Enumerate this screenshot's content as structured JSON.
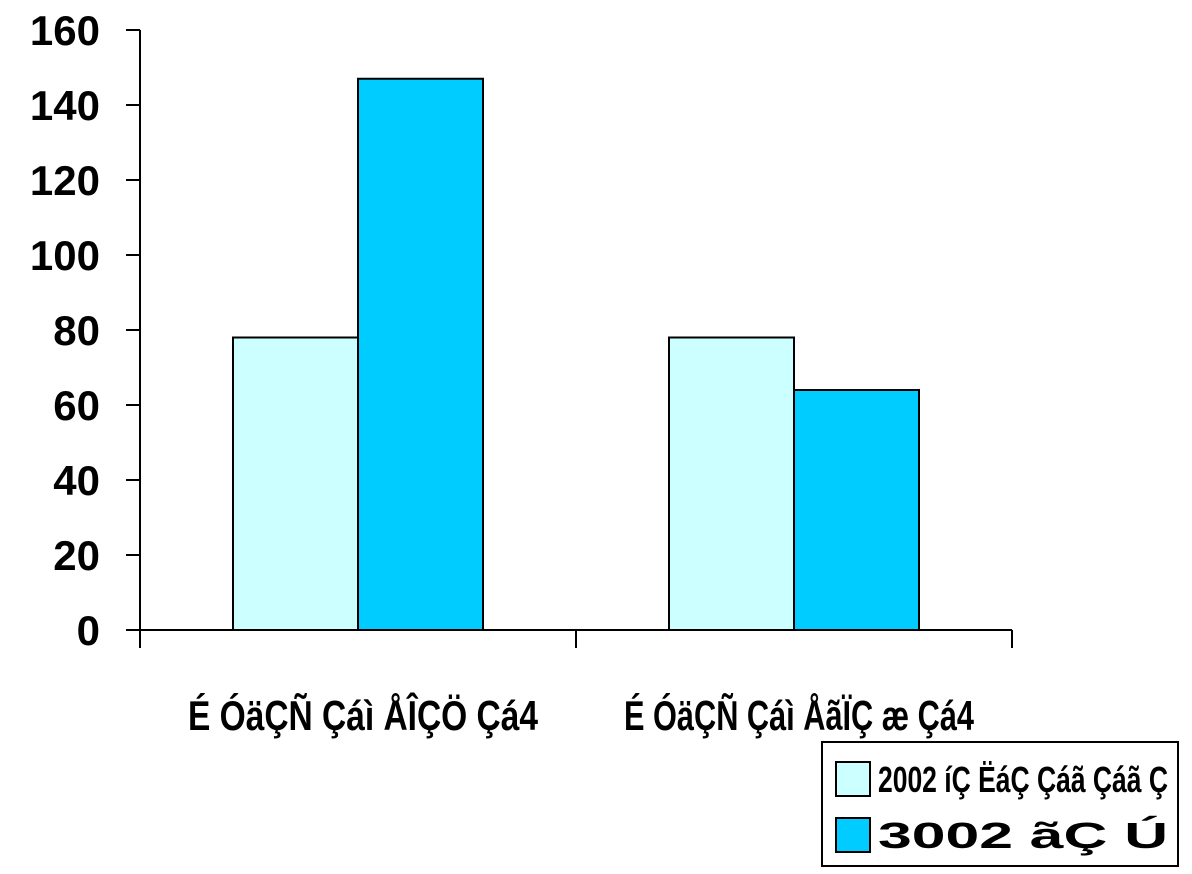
{
  "chart_data": {
    "type": "bar",
    "categories": [
      "É ÓäÇÑ Çáì ÅÎÇÖ Çá4",
      "É ÓäÇÑ Çáì ÅãÏÇ æ Çá4"
    ],
    "series": [
      {
        "name": "2002 íÇ ËáÇ Çáã Çáã Ç",
        "color": "#ccffff",
        "values": [
          78,
          78
        ]
      },
      {
        "name": "3002 ãÇ Ú",
        "color": "#00ccff",
        "values": [
          147,
          64
        ]
      }
    ],
    "y_ticks": [
      "0",
      "20",
      "40",
      "60",
      "80",
      "100",
      "120",
      "140",
      "160"
    ],
    "ylim": [
      0,
      160
    ],
    "title": "",
    "xlabel": "",
    "ylabel": "",
    "grid": false,
    "legend_position": "bottom-right"
  }
}
